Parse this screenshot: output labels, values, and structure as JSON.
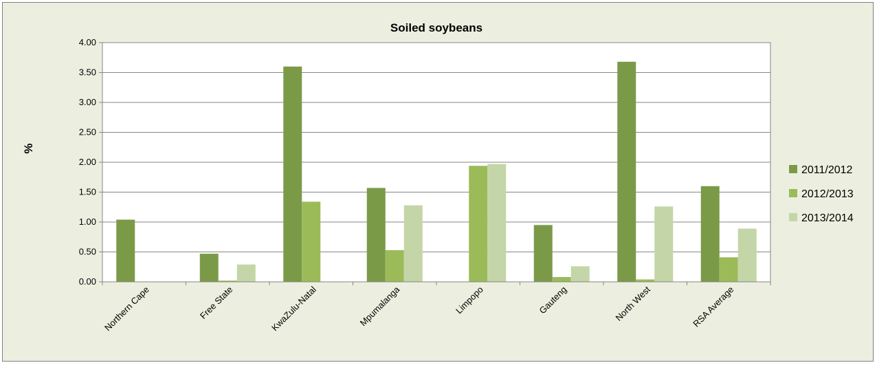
{
  "chart_data": {
    "type": "bar",
    "title": "Soiled soybeans",
    "xlabel": "",
    "ylabel": "%",
    "ylim": [
      0,
      4
    ],
    "yticks": [
      "0.00",
      "0.50",
      "1.00",
      "1.50",
      "2.00",
      "2.50",
      "3.00",
      "3.50",
      "4.00"
    ],
    "grid": true,
    "legend_position": "right",
    "categories": [
      "Northern Cape",
      "Free State",
      "KwaZulu-Natal",
      "Mpumalanga",
      "Limpopo",
      "Gauteng",
      "North West",
      "RSA Average"
    ],
    "series": [
      {
        "name": "2011/2012",
        "color": "#7b9a48",
        "values": [
          1.04,
          0.47,
          3.6,
          1.57,
          0.0,
          0.95,
          3.68,
          1.6
        ]
      },
      {
        "name": "2012/2013",
        "color": "#9bbb59",
        "values": [
          0.0,
          0.02,
          1.34,
          0.53,
          1.94,
          0.08,
          0.04,
          0.41
        ]
      },
      {
        "name": "2013/2014",
        "color": "#c4d6a7",
        "values": [
          0.0,
          0.29,
          0.0,
          1.28,
          1.97,
          0.26,
          1.26,
          0.89
        ]
      }
    ]
  }
}
